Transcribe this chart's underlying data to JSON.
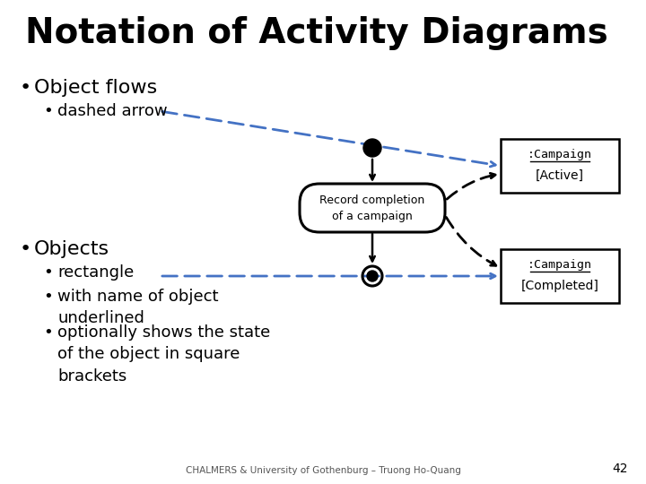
{
  "title": "Notation of Activity Diagrams",
  "title_fontsize": 28,
  "title_fontweight": "bold",
  "bg_color": "#ffffff",
  "text_color": "#000000",
  "bullet1": "Object flows",
  "bullet1_sub": "dashed arrow",
  "bullet2": "Objects",
  "bullet2_subs": [
    "rectangle",
    "with name of object\nunderlined",
    "optionally shows the state\nof the object in square\nbrackets"
  ],
  "activity_label": "Record completion\nof a campaign",
  "box1_line1": ":Campaign",
  "box1_line2": "[Active]",
  "box2_line1": ":Campaign",
  "box2_line2": "[Completed]",
  "dashed_color": "#4472c4",
  "footer": "CHALMERS & University of Gothenburg – Truong Ho-Quang",
  "page_num": "42"
}
